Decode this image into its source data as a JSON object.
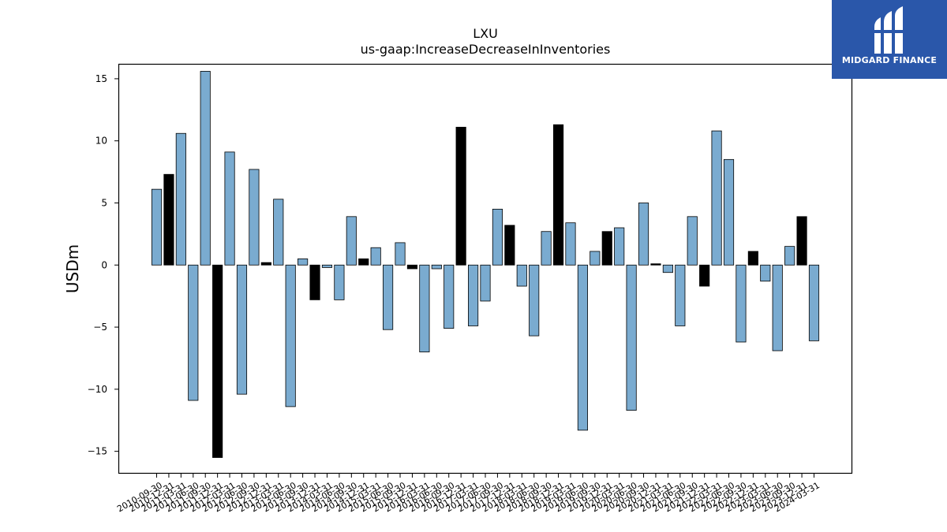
{
  "chart_data": {
    "type": "bar",
    "title": "LXU",
    "subtitle": "us-gaap:IncreaseDecreaseInInventories",
    "xlabel": "",
    "ylabel": "USDm",
    "ylim": [
      -16.8,
      16.2
    ],
    "yticks": [
      -15,
      -10,
      -5,
      0,
      5,
      10,
      15
    ],
    "grid": false,
    "colors": {
      "default": "#7aabd0",
      "highlight": "#000000",
      "edge": "#000000"
    },
    "categories": [
      "2010-09-30",
      "2010-12-31",
      "2011-03-31",
      "2011-06-30",
      "2011-09-30",
      "2011-12-31",
      "2012-03-31",
      "2012-06-30",
      "2012-09-30",
      "2012-12-31",
      "2013-03-31",
      "2013-06-30",
      "2013-09-30",
      "2013-12-31",
      "2014-03-31",
      "2014-06-30",
      "2014-09-30",
      "2014-12-31",
      "2015-03-31",
      "2015-06-30",
      "2015-09-30",
      "2015-12-31",
      "2016-03-31",
      "2016-06-30",
      "2016-09-30",
      "2016-12-31",
      "2017-03-31",
      "2017-06-30",
      "2017-09-30",
      "2017-12-31",
      "2018-03-31",
      "2018-06-30",
      "2018-09-30",
      "2018-12-31",
      "2019-03-31",
      "2019-06-30",
      "2019-09-30",
      "2019-12-31",
      "2020-03-31",
      "2020-06-30",
      "2020-09-30",
      "2020-12-31",
      "2021-03-31",
      "2021-06-30",
      "2021-09-30",
      "2021-12-31",
      "2022-03-31",
      "2022-06-30",
      "2022-09-30",
      "2022-12-31",
      "2023-03-31",
      "2023-06-30",
      "2023-09-30",
      "2023-12-31",
      "2024-03-31"
    ],
    "tick_labels": [
      "2010-09-30",
      "2010-12-31",
      "2011-03-31",
      "2011-06-30",
      "2011-09-30",
      "2011-12-31",
      "2012-03-31",
      "2012-06-30",
      "2012-09-30",
      "2012-12-31",
      "2013-03-31",
      "2013-06-30",
      "2013-09-30",
      "2013-12-31",
      "2014-03-31",
      "2014-06-30",
      "2014-09-30",
      "2014-12-31",
      "2015-03-31",
      "2015-06-30",
      "2015-09-30",
      "2015-12-31",
      "2016-03-31",
      "2016-06-30",
      "2016-09-30",
      "2016-12-31",
      "2017-03-31",
      "2017-06-30",
      "2017-09-30",
      "2017-12-31",
      "2018-03-31",
      "2018-06-30",
      "2018-09-30",
      "2018-12-31",
      "2019-03-31",
      "2019-06-30",
      "2019-09-30",
      "2019-12-31",
      "2020-03-31",
      "2020-06-30",
      "2020-09-30",
      "2020-12-31",
      "2021-03-31",
      "2021-06-30",
      "2021-09-30",
      "2021-12-31",
      "2022-03-31",
      "2022-06-30",
      "2022-09-30",
      "2022-12-31",
      "2023-03-31",
      "2023-06-30",
      "2023-09-30",
      "2023-12-31",
      "2024-03-31"
    ],
    "values": [
      6.1,
      7.3,
      10.6,
      -10.9,
      15.6,
      -15.5,
      9.1,
      -10.4,
      7.7,
      0.2,
      5.3,
      -11.4,
      0.5,
      -2.8,
      -0.2,
      -2.8,
      3.9,
      0.5,
      1.4,
      -5.2,
      1.8,
      -0.3,
      -7.0,
      -0.3,
      -5.1,
      11.1,
      -4.9,
      -2.9,
      4.5,
      3.2,
      -1.7,
      -5.7,
      2.7,
      11.3,
      3.4,
      -13.3,
      1.1,
      2.7,
      3.0,
      -11.7,
      5.0,
      0.1,
      -0.6,
      -4.9,
      3.9,
      -1.7,
      10.8,
      8.5,
      -6.2,
      1.1,
      -1.3,
      -6.9,
      1.5,
      3.9,
      -6.1
    ],
    "highlight": [
      false,
      true,
      false,
      false,
      false,
      true,
      false,
      false,
      false,
      true,
      false,
      false,
      false,
      true,
      false,
      false,
      false,
      true,
      false,
      false,
      false,
      true,
      false,
      false,
      false,
      true,
      false,
      false,
      false,
      true,
      false,
      false,
      false,
      true,
      false,
      false,
      false,
      true,
      false,
      false,
      false,
      true,
      false,
      false,
      false,
      true,
      false,
      false,
      false,
      true,
      false,
      false,
      false,
      true,
      false
    ]
  },
  "branding": {
    "name": "MIDGARD FINANCE",
    "background": "#2a57aa",
    "icon": "midgard-logo-icon"
  }
}
